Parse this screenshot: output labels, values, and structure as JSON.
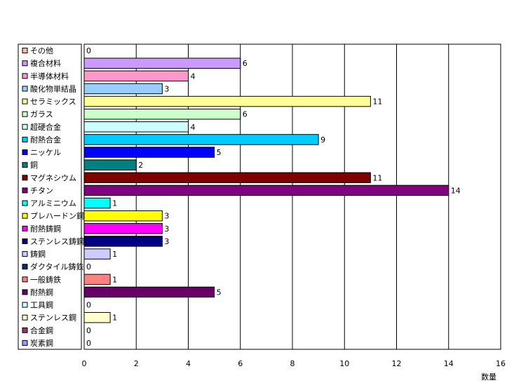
{
  "chart_data": {
    "type": "bar",
    "orientation": "horizontal",
    "xlabel": "数量",
    "xlim": [
      0,
      16
    ],
    "xticks": [
      0,
      2,
      4,
      6,
      8,
      10,
      12,
      14,
      16
    ],
    "grid": true,
    "legend_position": "left",
    "categories": [
      "その他",
      "複合材料",
      "半導体材料",
      "酸化物単結晶",
      "セラミックス",
      "ガラス",
      "超硬合金",
      "耐熱合金",
      "ニッケル",
      "銅",
      "マグネシウム",
      "チタン",
      "アルミニウム",
      "プレハードン鋼",
      "耐熱鋳鋼",
      "ステンレス鋳鋼",
      "鋳鋼",
      "ダクタイル鋳鉄",
      "一般鋳鉄",
      "耐熱鋼",
      "工具鋼",
      "ステンレス鋼",
      "合金鋼",
      "炭素鋼"
    ],
    "values": [
      0,
      6,
      4,
      3,
      11,
      6,
      4,
      9,
      5,
      2,
      11,
      14,
      1,
      3,
      3,
      3,
      1,
      0,
      1,
      5,
      0,
      1,
      0,
      0
    ],
    "colors": [
      "#ffbb99",
      "#cc99ff",
      "#ff99cc",
      "#99ccff",
      "#ffff99",
      "#ccffcc",
      "#ccffff",
      "#00ccff",
      "#0000ff",
      "#008080",
      "#800000",
      "#800080",
      "#00ffff",
      "#ffff00",
      "#ff00ff",
      "#000080",
      "#ccccff",
      "#003366",
      "#ff8080",
      "#660066",
      "#ccffff",
      "#ffffcc",
      "#993366",
      "#9999ff"
    ]
  }
}
